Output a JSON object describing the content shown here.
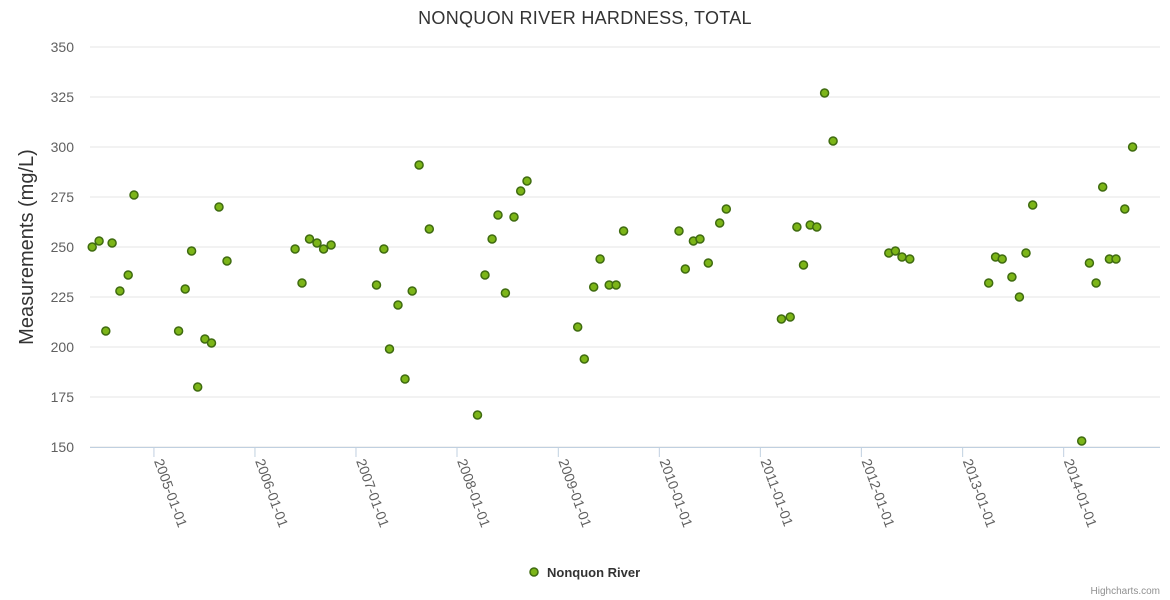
{
  "chart_data": {
    "type": "scatter",
    "title": "NONQUON RIVER HARDNESS, TOTAL",
    "ylabel": "Measurements (mg/L)",
    "xlabel": "",
    "ylim": [
      150,
      350
    ],
    "yticks": [
      150,
      175,
      200,
      225,
      250,
      275,
      300,
      325,
      350
    ],
    "xlim": [
      "2004-05-15",
      "2014-12-15"
    ],
    "xticks": [
      "2005-01-01",
      "2006-01-01",
      "2007-01-01",
      "2008-01-01",
      "2009-01-01",
      "2010-01-01",
      "2011-01-01",
      "2012-01-01",
      "2013-01-01",
      "2014-01-01"
    ],
    "grid": {
      "y": true,
      "x": false
    },
    "legend": {
      "position": "bottom-center"
    },
    "colors": {
      "marker_fill": "#7cb518",
      "marker_stroke": "#3f6b10"
    },
    "series": [
      {
        "name": "Nonquon River",
        "points": [
          {
            "x": "2004-05-23",
            "y": 250
          },
          {
            "x": "2004-06-17",
            "y": 253
          },
          {
            "x": "2004-07-11",
            "y": 208
          },
          {
            "x": "2004-08-03",
            "y": 252
          },
          {
            "x": "2004-08-31",
            "y": 228
          },
          {
            "x": "2004-09-30",
            "y": 236
          },
          {
            "x": "2004-10-21",
            "y": 276
          },
          {
            "x": "2005-03-31",
            "y": 208
          },
          {
            "x": "2005-04-24",
            "y": 229
          },
          {
            "x": "2005-05-17",
            "y": 248
          },
          {
            "x": "2005-06-08",
            "y": 180
          },
          {
            "x": "2005-07-04",
            "y": 204
          },
          {
            "x": "2005-07-28",
            "y": 202
          },
          {
            "x": "2005-08-24",
            "y": 270
          },
          {
            "x": "2005-09-22",
            "y": 243
          },
          {
            "x": "2006-05-26",
            "y": 249
          },
          {
            "x": "2006-06-20",
            "y": 232
          },
          {
            "x": "2006-07-17",
            "y": 254
          },
          {
            "x": "2006-08-13",
            "y": 252
          },
          {
            "x": "2006-09-06",
            "y": 249
          },
          {
            "x": "2006-10-03",
            "y": 251
          },
          {
            "x": "2007-03-16",
            "y": 231
          },
          {
            "x": "2007-04-12",
            "y": 249
          },
          {
            "x": "2007-05-02",
            "y": 199
          },
          {
            "x": "2007-06-02",
            "y": 221
          },
          {
            "x": "2007-06-27",
            "y": 184
          },
          {
            "x": "2007-07-23",
            "y": 228
          },
          {
            "x": "2007-08-17",
            "y": 291
          },
          {
            "x": "2007-09-23",
            "y": 259
          },
          {
            "x": "2008-03-15",
            "y": 166
          },
          {
            "x": "2008-04-11",
            "y": 236
          },
          {
            "x": "2008-05-07",
            "y": 254
          },
          {
            "x": "2008-05-28",
            "y": 266
          },
          {
            "x": "2008-06-24",
            "y": 227
          },
          {
            "x": "2008-07-25",
            "y": 265
          },
          {
            "x": "2008-08-18",
            "y": 278
          },
          {
            "x": "2008-09-10",
            "y": 283
          },
          {
            "x": "2009-03-12",
            "y": 210
          },
          {
            "x": "2009-04-05",
            "y": 194
          },
          {
            "x": "2009-05-09",
            "y": 230
          },
          {
            "x": "2009-06-01",
            "y": 244
          },
          {
            "x": "2009-07-04",
            "y": 231
          },
          {
            "x": "2009-07-29",
            "y": 231
          },
          {
            "x": "2009-08-25",
            "y": 258
          },
          {
            "x": "2010-03-13",
            "y": 258
          },
          {
            "x": "2010-04-05",
            "y": 239
          },
          {
            "x": "2010-05-04",
            "y": 253
          },
          {
            "x": "2010-05-28",
            "y": 254
          },
          {
            "x": "2010-06-27",
            "y": 242
          },
          {
            "x": "2010-08-07",
            "y": 262
          },
          {
            "x": "2010-08-31",
            "y": 269
          },
          {
            "x": "2011-03-18",
            "y": 214
          },
          {
            "x": "2011-04-19",
            "y": 215
          },
          {
            "x": "2011-05-13",
            "y": 260
          },
          {
            "x": "2011-06-06",
            "y": 241
          },
          {
            "x": "2011-06-30",
            "y": 261
          },
          {
            "x": "2011-07-24",
            "y": 260
          },
          {
            "x": "2011-08-21",
            "y": 327
          },
          {
            "x": "2011-09-21",
            "y": 303
          },
          {
            "x": "2012-04-09",
            "y": 247
          },
          {
            "x": "2012-05-03",
            "y": 248
          },
          {
            "x": "2012-05-27",
            "y": 245
          },
          {
            "x": "2012-06-24",
            "y": 244
          },
          {
            "x": "2013-04-05",
            "y": 232
          },
          {
            "x": "2013-04-30",
            "y": 245
          },
          {
            "x": "2013-05-24",
            "y": 244
          },
          {
            "x": "2013-06-28",
            "y": 235
          },
          {
            "x": "2013-07-25",
            "y": 225
          },
          {
            "x": "2013-08-18",
            "y": 247
          },
          {
            "x": "2013-09-11",
            "y": 271
          },
          {
            "x": "2014-03-07",
            "y": 153
          },
          {
            "x": "2014-04-04",
            "y": 242
          },
          {
            "x": "2014-04-28",
            "y": 232
          },
          {
            "x": "2014-05-22",
            "y": 280
          },
          {
            "x": "2014-06-15",
            "y": 244
          },
          {
            "x": "2014-07-09",
            "y": 244
          },
          {
            "x": "2014-08-10",
            "y": 269
          },
          {
            "x": "2014-09-07",
            "y": 300
          }
        ]
      }
    ]
  },
  "credits": "Highcharts.com"
}
